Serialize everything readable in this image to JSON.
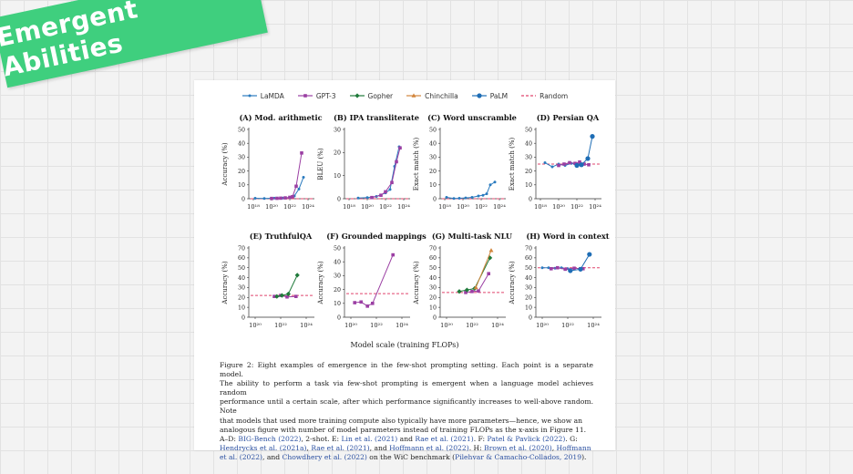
{
  "banner": {
    "text": "Emergent Abilities",
    "color": "#3fcf7e"
  },
  "chart_data": {
    "type": "line",
    "legend": [
      {
        "name": "LaMDA",
        "color": "#2b7bbf",
        "marker": "point"
      },
      {
        "name": "GPT-3",
        "color": "#9b3fa3",
        "marker": "square"
      },
      {
        "name": "Gopher",
        "color": "#1f7a3a",
        "marker": "diamond"
      },
      {
        "name": "Chinchilla",
        "color": "#d2853c",
        "marker": "triangle"
      },
      {
        "name": "PaLM",
        "color": "#1e6db5",
        "marker": "circle"
      },
      {
        "name": "Random",
        "color": "#e0456e",
        "marker": "dashed"
      }
    ],
    "xlabel": "Model scale (training FLOPs)",
    "panels": [
      {
        "title": "(A) Mod. arithmetic",
        "ylabel": "Accuracy (%)",
        "ylim": [
          0,
          50
        ],
        "yticks": [
          0,
          10,
          20,
          30,
          40,
          50
        ],
        "xlim": [
          17.5,
          24.5
        ],
        "xticks": [
          18,
          20,
          22,
          24
        ],
        "xtick_labels": [
          "10¹⁸",
          "10²⁰",
          "10²²",
          "10²⁴"
        ],
        "random": 0,
        "series": [
          {
            "name": "LaMDA",
            "points": [
              [
                18.2,
                0.3
              ],
              [
                19.2,
                0.2
              ],
              [
                20.3,
                0.4
              ],
              [
                21.2,
                0.5
              ],
              [
                22.0,
                0.8
              ],
              [
                22.5,
                2.0
              ],
              [
                23.0,
                7.0
              ],
              [
                23.5,
                15.5
              ]
            ]
          },
          {
            "name": "GPT-3",
            "points": [
              [
                20.0,
                0.2
              ],
              [
                20.6,
                0.3
              ],
              [
                21.0,
                0.4
              ],
              [
                21.5,
                0.6
              ],
              [
                22.0,
                1.0
              ],
              [
                22.3,
                1.5
              ],
              [
                22.7,
                9.0
              ],
              [
                23.3,
                33.0
              ]
            ]
          }
        ]
      },
      {
        "title": "(B) IPA transliterate",
        "ylabel": "BLEU (%)",
        "ylim": [
          0,
          30
        ],
        "yticks": [
          0,
          10,
          20,
          30
        ],
        "xlim": [
          17.5,
          24.5
        ],
        "xticks": [
          18,
          20,
          22,
          24
        ],
        "xtick_labels": [
          "10¹⁸",
          "10²⁰",
          "10²²",
          "10²⁴"
        ],
        "random": 0,
        "series": [
          {
            "name": "LaMDA",
            "points": [
              [
                19.0,
                0.3
              ],
              [
                20.0,
                0.5
              ],
              [
                21.0,
                1.0
              ],
              [
                22.0,
                2.5
              ],
              [
                22.5,
                4.0
              ],
              [
                23.0,
                14.0
              ],
              [
                23.5,
                22.5
              ]
            ]
          },
          {
            "name": "GPT-3",
            "points": [
              [
                20.5,
                0.5
              ],
              [
                21.5,
                1.5
              ],
              [
                22.0,
                3.0
              ],
              [
                22.7,
                7.0
              ],
              [
                23.2,
                16.0
              ],
              [
                23.6,
                22.0
              ]
            ]
          }
        ]
      },
      {
        "title": "(C) Word unscramble",
        "ylabel": "Exact match (%)",
        "ylim": [
          0,
          50
        ],
        "yticks": [
          0,
          10,
          20,
          30,
          40,
          50
        ],
        "xlim": [
          17.5,
          24.5
        ],
        "xticks": [
          18,
          20,
          22,
          24
        ],
        "xtick_labels": [
          "10¹⁸",
          "10²⁰",
          "10²²",
          "10²⁴"
        ],
        "random": 0,
        "series": [
          {
            "name": "LaMDA",
            "points": [
              [
                18.2,
                1.0
              ],
              [
                19.0,
                0.2
              ],
              [
                19.6,
                0.3
              ],
              [
                20.3,
                0.6
              ],
              [
                21.0,
                1.0
              ],
              [
                21.7,
                2.0
              ],
              [
                22.2,
                2.5
              ],
              [
                22.6,
                3.5
              ],
              [
                23.0,
                10.0
              ],
              [
                23.5,
                12.0
              ]
            ]
          }
        ]
      },
      {
        "title": "(D) Persian QA",
        "ylabel": "Exact match (%)",
        "ylim": [
          0,
          50
        ],
        "yticks": [
          0,
          10,
          20,
          30,
          40,
          50
        ],
        "xlim": [
          17.5,
          24.5
        ],
        "xticks": [
          18,
          20,
          22,
          24
        ],
        "xtick_labels": [
          "10¹⁸",
          "10²⁰",
          "10²²",
          "10²⁴"
        ],
        "random": 25,
        "series": [
          {
            "name": "LaMDA",
            "points": [
              [
                18.5,
                26.0
              ],
              [
                19.3,
                23.0
              ],
              [
                20.0,
                25.0
              ],
              [
                20.7,
                24.0
              ],
              [
                21.4,
                25.5
              ],
              [
                22.0,
                25.0
              ],
              [
                22.6,
                24.5
              ]
            ]
          },
          {
            "name": "GPT-3",
            "points": [
              [
                20.0,
                24.0
              ],
              [
                20.6,
                25.0
              ],
              [
                21.2,
                26.0
              ],
              [
                21.8,
                25.5
              ],
              [
                22.3,
                26.5
              ],
              [
                22.8,
                25.0
              ],
              [
                23.3,
                24.5
              ]
            ]
          },
          {
            "name": "PaLM",
            "points": [
              [
                22.0,
                24.0
              ],
              [
                22.5,
                24.5
              ],
              [
                23.2,
                29.0
              ],
              [
                23.7,
                45.0
              ]
            ]
          }
        ]
      },
      {
        "title": "(E) TruthfulQA",
        "ylabel": "Accuracy (%)",
        "ylim": [
          0,
          70
        ],
        "yticks": [
          0,
          10,
          20,
          30,
          40,
          50,
          60,
          70
        ],
        "xlim": [
          19.5,
          24.5
        ],
        "xticks": [
          20,
          22,
          24
        ],
        "xtick_labels": [
          "10²⁰",
          "10²²",
          "10²⁴"
        ],
        "random": 22,
        "series": [
          {
            "name": "GPT-3",
            "points": [
              [
                21.5,
                21.0
              ],
              [
                22.0,
                22.0
              ],
              [
                22.5,
                20.5
              ],
              [
                23.2,
                21.0
              ]
            ]
          },
          {
            "name": "Gopher",
            "points": [
              [
                21.7,
                21.0
              ],
              [
                22.1,
                22.0
              ],
              [
                22.6,
                23.5
              ],
              [
                23.3,
                42.5
              ]
            ]
          }
        ]
      },
      {
        "title": "(F) Grounded mappings",
        "ylabel": "Accuracy (%)",
        "ylim": [
          0,
          50
        ],
        "yticks": [
          0,
          10,
          20,
          30,
          40,
          50
        ],
        "xlim": [
          19.5,
          24.5
        ],
        "xticks": [
          20,
          22,
          24
        ],
        "xtick_labels": [
          "10²⁰",
          "10²²",
          "10²⁴"
        ],
        "random": 17,
        "series": [
          {
            "name": "GPT-3",
            "points": [
              [
                20.3,
                10.5
              ],
              [
                20.8,
                11.0
              ],
              [
                21.3,
                8.0
              ],
              [
                21.7,
                10.0
              ],
              [
                23.3,
                45.0
              ]
            ]
          }
        ]
      },
      {
        "title": "(G) Multi-task NLU",
        "ylabel": "Accuracy (%)",
        "ylim": [
          0,
          70
        ],
        "yticks": [
          0,
          10,
          20,
          30,
          40,
          50,
          60,
          70
        ],
        "xlim": [
          19.5,
          24.5
        ],
        "xticks": [
          20,
          22,
          24
        ],
        "xtick_labels": [
          "10²⁰",
          "10²²",
          "10²⁴"
        ],
        "random": 25,
        "series": [
          {
            "name": "GPT-3",
            "points": [
              [
                21.5,
                25.0
              ],
              [
                22.0,
                26.0
              ],
              [
                22.5,
                26.5
              ],
              [
                23.3,
                44.0
              ]
            ]
          },
          {
            "name": "Gopher",
            "points": [
              [
                21.0,
                26.0
              ],
              [
                21.6,
                27.5
              ],
              [
                22.2,
                29.0
              ],
              [
                23.4,
                60.0
              ]
            ]
          },
          {
            "name": "Chinchilla",
            "points": [
              [
                22.3,
                30.0
              ],
              [
                23.5,
                67.5
              ]
            ]
          }
        ]
      },
      {
        "title": "(H) Word in context",
        "ylabel": "Accuracy (%)",
        "ylim": [
          0,
          70
        ],
        "yticks": [
          0,
          10,
          20,
          30,
          40,
          50,
          60,
          70
        ],
        "xlim": [
          19.5,
          24.5
        ],
        "xticks": [
          20,
          22,
          24
        ],
        "xtick_labels": [
          "10²⁰",
          "10²²",
          "10²⁴"
        ],
        "random": 50,
        "series": [
          {
            "name": "LaMDA",
            "points": [
              [
                20.0,
                50.0
              ],
              [
                20.5,
                50.0
              ],
              [
                21.0,
                49.5
              ],
              [
                21.5,
                50.0
              ],
              [
                22.0,
                49.0
              ]
            ]
          },
          {
            "name": "GPT-3",
            "points": [
              [
                20.7,
                49.0
              ],
              [
                21.2,
                50.0
              ],
              [
                21.8,
                48.5
              ],
              [
                22.5,
                49.5
              ],
              [
                23.2,
                49.0
              ]
            ]
          },
          {
            "name": "PaLM",
            "points": [
              [
                22.2,
                47.0
              ],
              [
                23.0,
                48.5
              ],
              [
                23.7,
                63.5
              ]
            ]
          }
        ]
      }
    ]
  },
  "caption": {
    "lines": [
      [
        {
          "t": "Figure 2: Eight examples of emergence in the few-shot prompting setting. Each point is a separate model."
        }
      ],
      [
        {
          "t": "The ability to perform a task via few-shot prompting is emergent when a language model achieves random"
        }
      ],
      [
        {
          "t": "performance until a certain scale, after which performance significantly increases to well-above random. Note"
        }
      ],
      [
        {
          "t": "that models that used more training compute also typically have more parameters—hence, we show an"
        }
      ],
      [
        {
          "t": "analogous figure with number of model parameters instead of training FLOPs as the x-axis in Figure 11."
        }
      ],
      [
        {
          "t": "A–D: "
        },
        {
          "t": "BIG-Bench (2022)",
          "l": true
        },
        {
          "t": ", 2-shot. E: "
        },
        {
          "t": "Lin et al. (2021)",
          "l": true
        },
        {
          "t": " and "
        },
        {
          "t": "Rae et al. (2021)",
          "l": true
        },
        {
          "t": ". F: "
        },
        {
          "t": "Patel & Pavlick (2022)",
          "l": true
        },
        {
          "t": ". G:"
        }
      ],
      [
        {
          "t": "Hendrycks et al. (2021a)",
          "l": true
        },
        {
          "t": ", "
        },
        {
          "t": "Rae et al. (2021)",
          "l": true
        },
        {
          "t": ", and "
        },
        {
          "t": "Hoffmann et al. (2022)",
          "l": true
        },
        {
          "t": ". H: "
        },
        {
          "t": "Brown et al. (2020)",
          "l": true
        },
        {
          "t": ", "
        },
        {
          "t": "Hoffmann",
          "l": true
        }
      ],
      [
        {
          "t": "et al. (2022)",
          "l": true
        },
        {
          "t": ", and "
        },
        {
          "t": "Chowdhery et al. (2022)",
          "l": true
        },
        {
          "t": " on the WiC benchmark ("
        },
        {
          "t": "Pilehvar & Camacho-Collados, 2019",
          "l": true
        },
        {
          "t": ")."
        }
      ]
    ]
  }
}
